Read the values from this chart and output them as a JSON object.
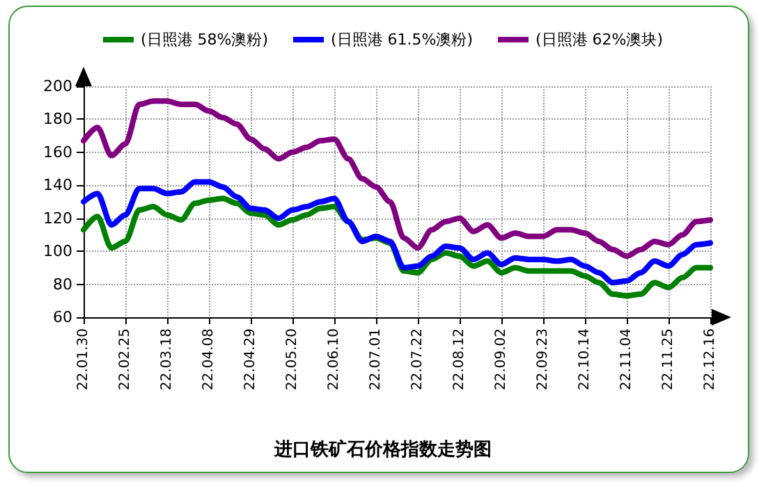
{
  "chart_data": {
    "type": "line",
    "title": "进口铁矿石价格指数走势图",
    "categories": [
      "22.01.30",
      null,
      null,
      "22.02.25",
      null,
      null,
      "22.03.18",
      null,
      null,
      "22.04.08",
      null,
      null,
      "22.04.29",
      null,
      null,
      "22.05.20",
      null,
      null,
      "22.06.10",
      null,
      null,
      "22.07.01",
      null,
      null,
      "22.07.22",
      null,
      null,
      "22.08.12",
      null,
      null,
      "22.09.02",
      null,
      null,
      "22.09.23",
      null,
      null,
      "22.10.14",
      null,
      null,
      "22.11.04",
      null,
      null,
      "22.11.25",
      null,
      null,
      "22.12.16"
    ],
    "series": [
      {
        "name": "(日照港 58%澳粉)",
        "color": "#008000",
        "values": [
          113,
          121,
          102,
          106,
          125,
          127,
          122,
          119,
          129,
          131,
          132,
          129,
          123,
          122,
          116,
          119,
          122,
          126,
          127,
          118,
          107,
          108,
          105,
          88,
          87,
          95,
          99,
          97,
          91,
          94,
          87,
          90,
          88,
          88,
          88,
          88,
          85,
          81,
          74,
          73,
          74,
          81,
          78,
          84,
          90,
          90
        ]
      },
      {
        "name": "(日照港 61.5%澳粉)",
        "color": "#0000ff",
        "values": [
          130,
          135,
          116,
          122,
          138,
          138,
          135,
          136,
          142,
          142,
          139,
          133,
          126,
          125,
          120,
          125,
          127,
          130,
          132,
          118,
          106,
          109,
          106,
          90,
          91,
          97,
          103,
          102,
          95,
          99,
          92,
          96,
          95,
          95,
          94,
          95,
          91,
          87,
          81,
          82,
          87,
          94,
          91,
          98,
          104,
          105
        ]
      },
      {
        "name": "(日照港 62%澳块)",
        "color": "#800080",
        "values": [
          167,
          175,
          158,
          165,
          189,
          191,
          191,
          189,
          189,
          185,
          181,
          177,
          168,
          162,
          156,
          160,
          163,
          167,
          168,
          156,
          144,
          139,
          130,
          108,
          102,
          113,
          118,
          120,
          112,
          116,
          108,
          111,
          109,
          109,
          113,
          113,
          111,
          106,
          101,
          97,
          101,
          106,
          104,
          110,
          118,
          119
        ]
      }
    ],
    "ylim": [
      60,
      200
    ],
    "yticks": [
      60,
      80,
      100,
      120,
      140,
      160,
      180,
      200
    ],
    "grid": true,
    "legend": "top",
    "marker": "none",
    "line_style": "solid"
  }
}
